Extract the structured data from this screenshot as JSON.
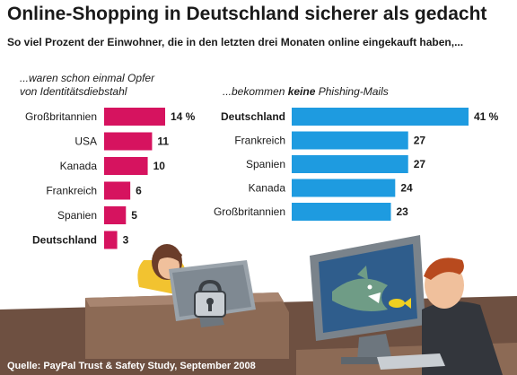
{
  "header": {
    "title": "Online-Shopping in Deutschland sicherer als gedacht",
    "subtitle": "So viel Prozent der Einwohner, die in den letzten drei Monaten online eingekauft haben,..."
  },
  "left_panel": {
    "label_line1": "...waren schon einmal Opfer",
    "label_line2": "von Identitätsdiebstahl"
  },
  "right_panel": {
    "label_prefix": "...bekommen ",
    "label_emph": "keine",
    "label_suffix": " Phishing-Mails"
  },
  "source": "Quelle: PayPal Trust & Safety Study, September 2008",
  "colors": {
    "left_bars": "#d6135f",
    "right_bars": "#1e9be0",
    "footer": "#7a5a48"
  },
  "chart_data": [
    {
      "type": "bar",
      "orientation": "horizontal",
      "categories": [
        "Großbritannien",
        "USA",
        "Kanada",
        "Frankreich",
        "Spanien",
        "Deutschland"
      ],
      "values": [
        14,
        11,
        10,
        6,
        5,
        3
      ],
      "value_labels": [
        "14 %",
        "11",
        "10",
        "6",
        "5",
        "3"
      ],
      "highlight": "Deutschland",
      "color": "#d6135f",
      "xlim": [
        0,
        14
      ]
    },
    {
      "type": "bar",
      "orientation": "horizontal",
      "categories": [
        "Deutschland",
        "Frankreich",
        "Spanien",
        "Kanada",
        "Großbritannien"
      ],
      "values": [
        41,
        27,
        27,
        24,
        23
      ],
      "value_labels": [
        "41 %",
        "27",
        "27",
        "24",
        "23"
      ],
      "highlight": "Deutschland",
      "color": "#1e9be0",
      "xlim": [
        0,
        41
      ]
    }
  ]
}
